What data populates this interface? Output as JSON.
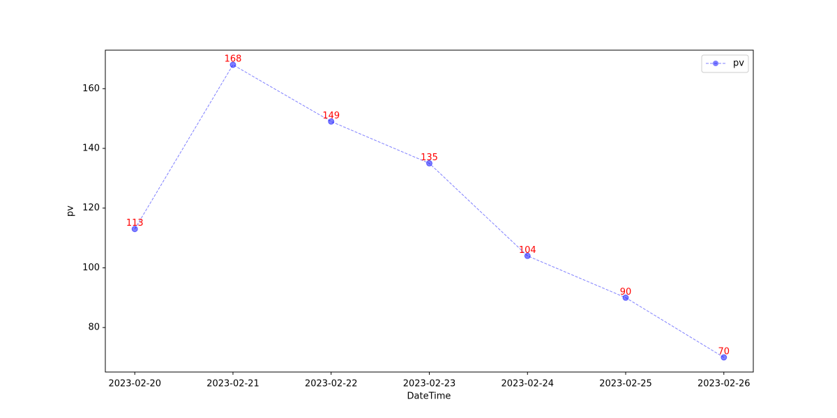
{
  "chart_data": {
    "type": "line",
    "x_label": "DateTime",
    "y_label": "pv",
    "categories": [
      "2023-02-20",
      "2023-02-21",
      "2023-02-22",
      "2023-02-23",
      "2023-02-24",
      "2023-02-25",
      "2023-02-26"
    ],
    "series": [
      {
        "name": "pv",
        "color": "#0000ff",
        "values": [
          113,
          168,
          149,
          135,
          104,
          90,
          70
        ]
      }
    ],
    "label_color": "#ff0000",
    "ylim": [
      65.1,
      172.9
    ],
    "yticks": [
      80,
      100,
      120,
      140,
      160
    ],
    "grid": false,
    "legend": "upper right"
  }
}
